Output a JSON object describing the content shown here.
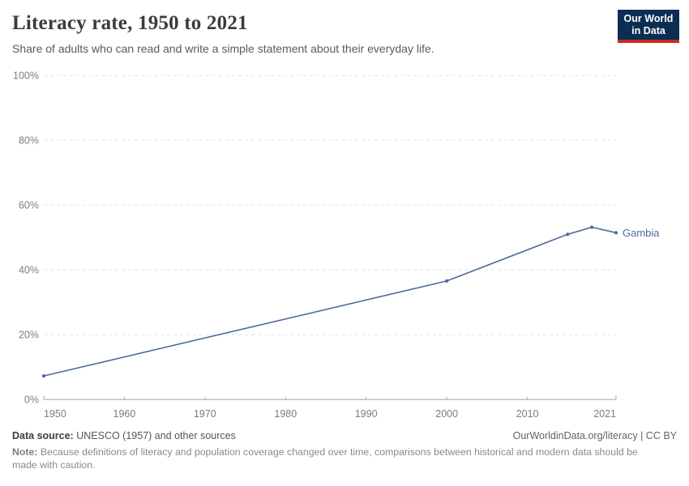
{
  "header": {
    "title": "Literacy rate, 1950 to 2021",
    "subtitle": "Share of adults who can read and write a simple statement about their everyday life."
  },
  "logo": {
    "line1": "Our World",
    "line2": "in Data",
    "bg_color": "#0c2e54",
    "bar_color": "#d02a1e"
  },
  "chart_data": {
    "type": "line",
    "title": "Literacy rate, 1950 to 2021",
    "x": [
      1950,
      2000,
      2015,
      2018,
      2021
    ],
    "series": [
      {
        "name": "Gambia",
        "values": [
          7.3,
          36.6,
          51.0,
          53.2,
          51.5
        ]
      }
    ],
    "xlabel": "",
    "ylabel": "",
    "xlim": [
      1950,
      2021
    ],
    "ylim": [
      0,
      100
    ],
    "x_ticks": [
      1950,
      1960,
      1970,
      1980,
      1990,
      2000,
      2010,
      2021
    ],
    "y_ticks": [
      0,
      20,
      40,
      60,
      80,
      100
    ],
    "y_tick_suffix": "%",
    "grid": "horizontal-dashed",
    "legend_position": "end-of-line-label",
    "line_color": "#4C6A9C",
    "grid_color": "#e2e2e2",
    "axis_color": "#a5a5a5",
    "tick_label_color": "#7d7d7d"
  },
  "footer": {
    "source_label": "Data source:",
    "source_text": "UNESCO (1957) and other sources",
    "link": "OurWorldinData.org/literacy | CC BY",
    "note_label": "Note:",
    "note_text": "Because definitions of literacy and population coverage changed over time, comparisons between historical and modern data should be made with caution."
  }
}
